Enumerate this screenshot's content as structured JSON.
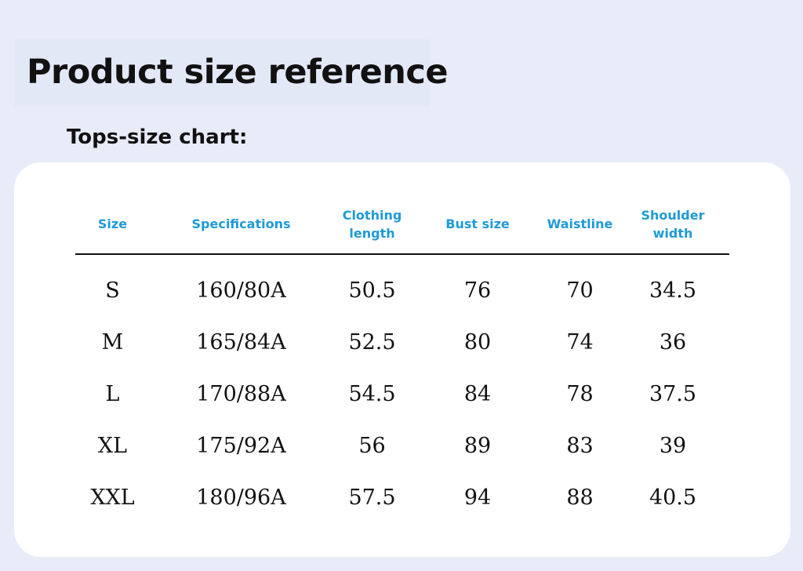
{
  "page": {
    "title": "Product size reference",
    "section_title": "Tops-size chart:"
  },
  "table": {
    "headers": [
      "Size",
      "Specifications",
      "Clothing length",
      "Bust size",
      "Waistline",
      "Shoulder width"
    ],
    "rows": [
      [
        "S",
        "160/80A",
        "50.5",
        "76",
        "70",
        "34.5"
      ],
      [
        "M",
        "165/84A",
        "52.5",
        "80",
        "74",
        "36"
      ],
      [
        "L",
        "170/88A",
        "54.5",
        "84",
        "78",
        "37.5"
      ],
      [
        "XL",
        "175/92A",
        "56",
        "89",
        "83",
        "39"
      ],
      [
        "XXL",
        "180/96A",
        "57.5",
        "94",
        "88",
        "40.5"
      ]
    ]
  },
  "colors": {
    "page_background": "#e8ecf9",
    "card_background": "#ffffff",
    "header_text": "#1f9ad6",
    "body_text": "#111111"
  }
}
